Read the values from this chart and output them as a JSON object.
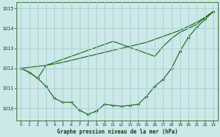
{
  "title": "Graphe pression niveau de la mer (hPa)",
  "bg_color": "#cce8e8",
  "grid_color": "#aacfcf",
  "line_color": "#1a6b1a",
  "xlim": [
    -0.5,
    23.5
  ],
  "ylim": [
    1009.4,
    1015.3
  ],
  "yticks": [
    1010,
    1011,
    1012,
    1013,
    1014,
    1015
  ],
  "xticks": [
    0,
    1,
    2,
    3,
    4,
    5,
    6,
    7,
    8,
    9,
    10,
    11,
    12,
    13,
    14,
    15,
    16,
    17,
    18,
    19,
    20,
    21,
    22,
    23
  ],
  "curve_main": [
    1012.0,
    1011.8,
    1011.5,
    1011.1,
    1010.5,
    1010.3,
    1010.3,
    1009.9,
    1009.7,
    1009.85,
    1010.2,
    1010.15,
    1010.1,
    1010.15,
    1010.2,
    1010.6,
    1011.1,
    1011.45,
    1012.0,
    1012.85,
    1013.55,
    1014.05,
    1014.45,
    1014.85
  ],
  "curve_linear": [
    1012.0,
    1012.05,
    1012.1,
    1012.15,
    1012.22,
    1012.3,
    1012.4,
    1012.5,
    1012.6,
    1012.7,
    1012.8,
    1012.9,
    1013.0,
    1013.1,
    1013.2,
    1013.3,
    1013.45,
    1013.6,
    1013.75,
    1013.9,
    1014.1,
    1014.3,
    1014.55,
    1014.85
  ],
  "curve_mid": [
    1012.0,
    1011.8,
    1011.5,
    1012.15,
    1012.3,
    1012.45,
    1012.6,
    1012.75,
    1012.9,
    1013.05,
    1013.2,
    1013.35,
    1013.2,
    1013.05,
    1012.9,
    1012.75,
    1012.6,
    1013.1,
    1013.5,
    1013.8,
    1014.0,
    1014.2,
    1014.55,
    1014.85
  ]
}
